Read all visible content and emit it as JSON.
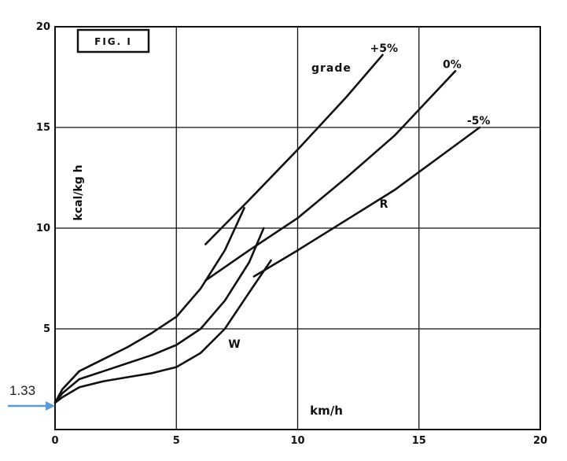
{
  "chart_data": {
    "type": "line",
    "title": "FIG. I",
    "xlabel": "km/h",
    "ylabel": "kcal/kg h",
    "xlim": [
      0,
      20
    ],
    "ylim": [
      0,
      20
    ],
    "xticks": [
      "0",
      "5",
      "10",
      "15",
      "20"
    ],
    "yticks": [
      "5",
      "10",
      "15",
      "20"
    ],
    "grid": true,
    "legend_title": "grade",
    "annotations": {
      "walking_label": "W",
      "running_label": "R",
      "intercept_value": "1.33"
    },
    "series": [
      {
        "name": "+5%",
        "walking": {
          "x": [
            0,
            0.3,
            1,
            2,
            3,
            4,
            5,
            6,
            7,
            7.8
          ],
          "y": [
            1.33,
            2.0,
            2.9,
            3.5,
            4.1,
            4.8,
            5.6,
            7.0,
            8.9,
            11.0
          ]
        },
        "running": {
          "x": [
            6.2,
            8,
            10,
            12,
            13.5
          ],
          "y": [
            9.2,
            11.4,
            13.9,
            16.5,
            18.6
          ]
        }
      },
      {
        "name": "0%",
        "walking": {
          "x": [
            0,
            0.3,
            1,
            2,
            3,
            4,
            5,
            6,
            7,
            8,
            8.6
          ],
          "y": [
            1.33,
            1.8,
            2.5,
            2.9,
            3.3,
            3.7,
            4.2,
            5.0,
            6.4,
            8.3,
            10.0
          ]
        },
        "running": {
          "x": [
            6.2,
            8,
            10,
            12,
            14,
            16.5
          ],
          "y": [
            7.4,
            8.9,
            10.5,
            12.5,
            14.6,
            17.8
          ]
        }
      },
      {
        "name": "-5%",
        "walking": {
          "x": [
            0,
            0.3,
            1,
            2,
            3,
            4,
            5,
            6,
            7,
            8,
            8.9
          ],
          "y": [
            1.33,
            1.6,
            2.1,
            2.4,
            2.6,
            2.8,
            3.1,
            3.8,
            5.0,
            6.8,
            8.4
          ]
        },
        "running": {
          "x": [
            8.2,
            10,
            12,
            14,
            17.5
          ],
          "y": [
            7.6,
            8.9,
            10.4,
            11.9,
            15.0
          ]
        }
      }
    ]
  }
}
